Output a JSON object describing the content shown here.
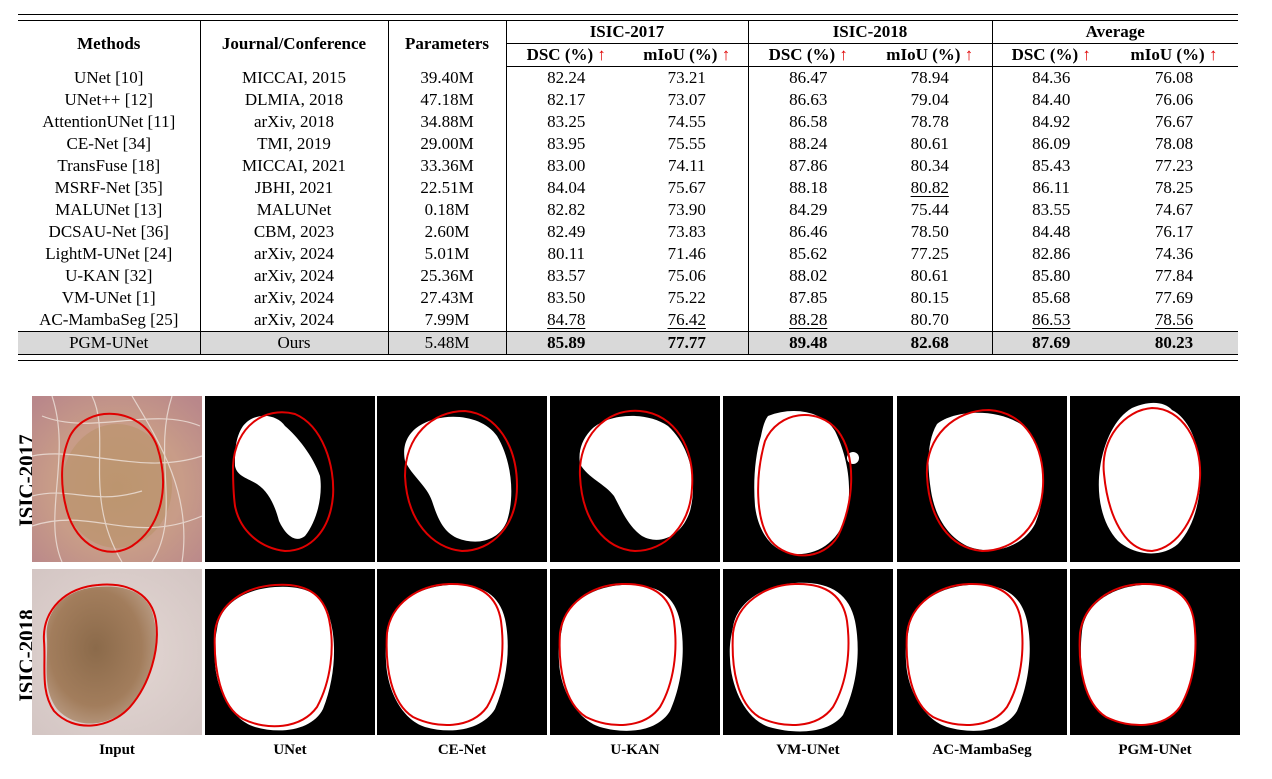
{
  "table": {
    "headers": {
      "methods": "Methods",
      "venue": "Journal/Conference",
      "params": "Parameters",
      "isic2017": "ISIC-2017",
      "isic2018": "ISIC-2018",
      "average": "Average",
      "dsc": "DSC (%)",
      "miou": "mIoU (%)",
      "arrow": "↑"
    },
    "rows": [
      [
        "UNet [10]",
        "MICCAI, 2015",
        "39.40M",
        "82.24",
        "73.21",
        "86.47",
        "78.94",
        "84.36",
        "76.08"
      ],
      [
        "UNet++ [12]",
        "DLMIA, 2018",
        "47.18M",
        "82.17",
        "73.07",
        "86.63",
        "79.04",
        "84.40",
        "76.06"
      ],
      [
        "AttentionUNet [11]",
        "arXiv, 2018",
        "34.88M",
        "83.25",
        "74.55",
        "86.58",
        "78.78",
        "84.92",
        "76.67"
      ],
      [
        "CE-Net [34]",
        "TMI, 2019",
        "29.00M",
        "83.95",
        "75.55",
        "88.24",
        "80.61",
        "86.09",
        "78.08"
      ],
      [
        "TransFuse [18]",
        "MICCAI, 2021",
        "33.36M",
        "83.00",
        "74.11",
        "87.86",
        "80.34",
        "85.43",
        "77.23"
      ],
      [
        "MSRF-Net [35]",
        "JBHI, 2021",
        "22.51M",
        "84.04",
        "75.67",
        "88.18",
        "80.82",
        "86.11",
        "78.25"
      ],
      [
        "MALUNet [13]",
        "MALUNet",
        "0.18M",
        "82.82",
        "73.90",
        "84.29",
        "75.44",
        "83.55",
        "74.67"
      ],
      [
        "DCSAU-Net [36]",
        "CBM, 2023",
        "2.60M",
        "82.49",
        "73.83",
        "86.46",
        "78.50",
        "84.48",
        "76.17"
      ],
      [
        "LightM-UNet [24]",
        "arXiv, 2024",
        "5.01M",
        "80.11",
        "71.46",
        "85.62",
        "77.25",
        "82.86",
        "74.36"
      ],
      [
        "U-KAN [32]",
        "arXiv, 2024",
        "25.36M",
        "83.57",
        "75.06",
        "88.02",
        "80.61",
        "85.80",
        "77.84"
      ],
      [
        "VM-UNet [1]",
        "arXiv, 2024",
        "27.43M",
        "83.50",
        "75.22",
        "87.85",
        "80.15",
        "85.68",
        "77.69"
      ],
      [
        "AC-MambaSeg [25]",
        "arXiv, 2024",
        "7.99M",
        "84.78",
        "76.42",
        "88.28",
        "80.70",
        "86.53",
        "78.56"
      ]
    ],
    "ours": [
      "PGM-UNet",
      "Ours",
      "5.48M",
      "85.89",
      "77.77",
      "89.48",
      "82.68",
      "87.69",
      "80.23"
    ]
  },
  "figure": {
    "row_labels": [
      "ISIC-2017",
      "ISIC-2018"
    ],
    "columns": [
      "Input",
      "UNet",
      "CE-Net",
      "U-KAN",
      "VM-UNet",
      "AC-MambaSeg",
      "PGM-UNet"
    ]
  },
  "colors": {
    "arrow": "#e00000",
    "contour": "#e00000",
    "highlight_row": "#d9d9d9",
    "mask_bg": "#000000",
    "mask_fg": "#ffffff"
  }
}
